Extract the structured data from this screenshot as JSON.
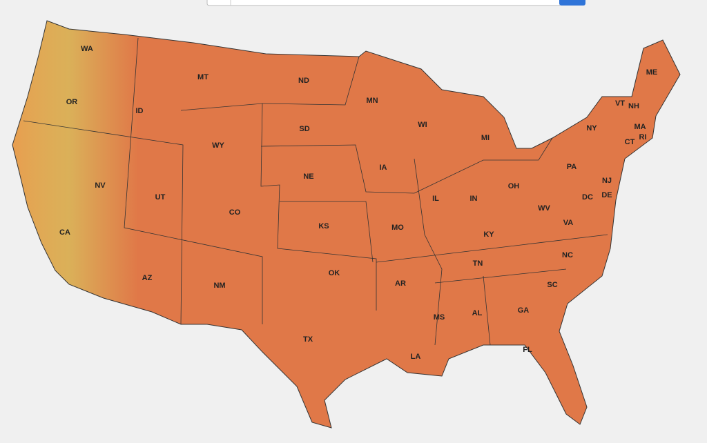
{
  "map": {
    "states": [
      "WA",
      "OR",
      "ID",
      "MT",
      "ND",
      "MN",
      "WI",
      "MI",
      "NY",
      "VT",
      "NH",
      "ME",
      "MA",
      "CT",
      "RI",
      "PA",
      "NJ",
      "DE",
      "DC",
      "SD",
      "WY",
      "NE",
      "IA",
      "IL",
      "IN",
      "OH",
      "WV",
      "VA",
      "KY",
      "NV",
      "UT",
      "CO",
      "KS",
      "MO",
      "CA",
      "TN",
      "NC",
      "AZ",
      "NM",
      "OK",
      "AR",
      "SC",
      "GA",
      "AL",
      "MS",
      "TX",
      "LA",
      "FL"
    ]
  }
}
